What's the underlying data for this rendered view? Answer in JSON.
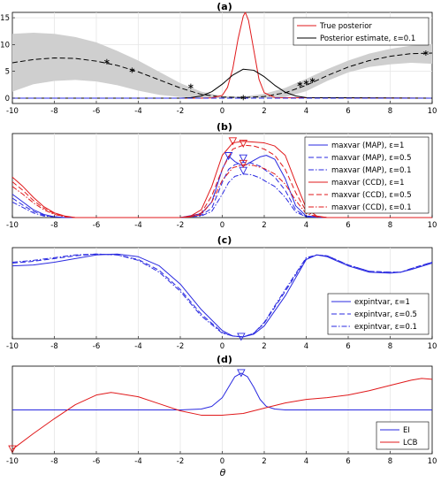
{
  "chart_data": [
    {
      "panel": "a",
      "title": "(a)",
      "type": "line",
      "xlim": [
        -10,
        10
      ],
      "ylim": [
        -1,
        16
      ],
      "xticks": [
        -10,
        -8,
        -6,
        -4,
        -2,
        0,
        2,
        4,
        6,
        8,
        10
      ],
      "yticks": [
        0,
        5,
        10,
        15
      ],
      "grid": true,
      "legend": "top-right",
      "legend_entries": [
        "True posterior",
        "Posterior estimate, ε=0.1"
      ],
      "band": {
        "x": [
          -10,
          -9,
          -8,
          -7,
          -6,
          -5,
          -4,
          -3,
          -2,
          -1,
          0,
          1,
          2,
          3,
          4,
          5,
          6,
          7,
          8,
          9,
          10
        ],
        "lower": [
          1.2,
          2.6,
          3.2,
          3.4,
          3.1,
          2.4,
          1.4,
          0.6,
          0.2,
          0.1,
          0.0,
          0.0,
          0.0,
          0.2,
          1.3,
          3.2,
          4.8,
          5.8,
          6.3,
          6.6,
          6.4
        ],
        "upper": [
          12.0,
          12.2,
          12.0,
          11.4,
          10.4,
          8.8,
          7.0,
          4.9,
          2.8,
          1.2,
          0.4,
          0.3,
          0.8,
          1.9,
          3.6,
          5.4,
          7.0,
          8.3,
          9.2,
          9.8,
          10.1
        ]
      },
      "series": [
        {
          "style": "dashed-black",
          "x": [
            -10,
            -9,
            -8,
            -7,
            -6,
            -5,
            -4,
            -3,
            -2,
            -1,
            0,
            1,
            2,
            3,
            4,
            5,
            6,
            7,
            8,
            9,
            10
          ],
          "y": [
            6.6,
            7.2,
            7.5,
            7.4,
            6.9,
            6.1,
            4.9,
            3.4,
            1.9,
            0.7,
            0.2,
            0.1,
            0.3,
            1.0,
            2.4,
            4.2,
            5.8,
            7.0,
            7.8,
            8.3,
            8.4
          ]
        },
        {
          "style": "solid-red",
          "x": [
            -10,
            -1,
            -0.5,
            0,
            0.25,
            0.5,
            0.75,
            1,
            1.1,
            1.25,
            1.5,
            1.75,
            2,
            2.5,
            10
          ],
          "y": [
            0,
            0,
            0.05,
            0.5,
            2,
            5.5,
            11,
            15.3,
            16,
            14.5,
            9,
            3.5,
            1,
            0.1,
            0
          ]
        },
        {
          "style": "solid-black",
          "x": [
            -10,
            -2,
            -1.5,
            -1,
            -0.5,
            0,
            0.5,
            1,
            1.5,
            2,
            2.5,
            3,
            3.5,
            4,
            10
          ],
          "y": [
            0,
            0,
            0.1,
            0.4,
            1.2,
            2.6,
            4.3,
            5.4,
            5.2,
            4.0,
            2.4,
            1.1,
            0.4,
            0.1,
            0
          ]
        },
        {
          "style": "dashed-blue",
          "x": [
            -10,
            10
          ],
          "y": [
            0,
            0
          ]
        }
      ],
      "points": {
        "x": [
          -5.5,
          -4.3,
          -1.5,
          1.0,
          3.7,
          4.0,
          4.3,
          9.7
        ],
        "y": [
          6.8,
          5.2,
          2.2,
          0.1,
          2.6,
          2.9,
          3.3,
          8.4
        ]
      }
    },
    {
      "panel": "b",
      "title": "(b)",
      "type": "line",
      "xlim": [
        -10,
        10
      ],
      "ylim": [
        0,
        1.08
      ],
      "xticks": [
        -10,
        -8,
        -6,
        -4,
        -2,
        0,
        2,
        4,
        6,
        8,
        10
      ],
      "grid": true,
      "legend": "right",
      "legend_entries": [
        "maxvar (MAP), ε=1",
        "maxvar (MAP), ε=0.5",
        "maxvar (MAP), ε=0.1",
        "maxvar (CCD), ε=1",
        "maxvar (CCD), ε=0.5",
        "maxvar (CCD), ε=0.1"
      ],
      "series": [
        {
          "style": "solid-blue",
          "x": [
            -10,
            -9.5,
            -9,
            -8.5,
            -8,
            -7.5,
            -7,
            -5,
            -2,
            -1,
            -0.5,
            0,
            0.3,
            0.6,
            1,
            1.4,
            1.8,
            2.1,
            2.5,
            3,
            3.5,
            4,
            5,
            10
          ],
          "y": [
            0.3,
            0.2,
            0.1,
            0.04,
            0.01,
            0,
            0,
            0,
            0,
            0.05,
            0.2,
            0.62,
            0.79,
            0.72,
            0.66,
            0.72,
            0.78,
            0.8,
            0.75,
            0.5,
            0.15,
            0.02,
            0,
            0
          ],
          "marker": {
            "x": 0.3,
            "y": 0.79
          }
        },
        {
          "style": "dashed-blue",
          "x": [
            -10,
            -9.5,
            -9,
            -8.5,
            -8,
            -7.5,
            -7,
            -5,
            -2,
            -1,
            -0.5,
            0,
            0.3,
            0.6,
            1,
            1.4,
            1.8,
            2.1,
            2.5,
            3,
            3.5,
            4,
            5,
            10
          ],
          "y": [
            0.25,
            0.16,
            0.08,
            0.03,
            0.01,
            0,
            0,
            0,
            0,
            0.03,
            0.12,
            0.45,
            0.62,
            0.68,
            0.71,
            0.7,
            0.66,
            0.6,
            0.52,
            0.35,
            0.1,
            0.01,
            0,
            0
          ],
          "marker": {
            "x": 1.0,
            "y": 0.76
          }
        },
        {
          "style": "dashdot-blue",
          "x": [
            -10,
            -9.5,
            -9,
            -8.5,
            -8,
            -7.5,
            -7,
            -5,
            -2,
            -1,
            -0.5,
            0,
            0.3,
            0.6,
            1,
            1.4,
            1.8,
            2.1,
            2.5,
            3,
            3.5,
            4,
            5,
            10
          ],
          "y": [
            0.2,
            0.13,
            0.06,
            0.02,
            0.01,
            0,
            0,
            0,
            0,
            0.02,
            0.08,
            0.3,
            0.45,
            0.53,
            0.56,
            0.55,
            0.51,
            0.46,
            0.4,
            0.26,
            0.07,
            0.01,
            0,
            0
          ],
          "marker": {
            "x": 1.0,
            "y": 0.6
          }
        },
        {
          "style": "solid-red",
          "x": [
            -10,
            -9.5,
            -9,
            -8.5,
            -8,
            -7.5,
            -7,
            -5,
            -2,
            -1.5,
            -1,
            -0.5,
            0,
            0.5,
            1,
            1.5,
            2,
            2.5,
            3,
            3.5,
            4,
            4.5,
            5,
            10
          ],
          "y": [
            0.52,
            0.4,
            0.26,
            0.14,
            0.06,
            0.02,
            0,
            0,
            0,
            0.02,
            0.1,
            0.4,
            0.8,
            0.96,
            0.98,
            0.97,
            0.96,
            0.92,
            0.8,
            0.45,
            0.12,
            0.02,
            0,
            0
          ],
          "marker": {
            "x": 0.5,
            "y": 0.98
          }
        },
        {
          "style": "dashed-red",
          "x": [
            -10,
            -9.5,
            -9,
            -8.5,
            -8,
            -7.5,
            -7,
            -5,
            -2,
            -1.5,
            -1,
            -0.5,
            0,
            0.5,
            1,
            1.5,
            2,
            2.5,
            3,
            3.5,
            4,
            4.5,
            5,
            10
          ],
          "y": [
            0.46,
            0.35,
            0.22,
            0.12,
            0.05,
            0.01,
            0,
            0,
            0,
            0.01,
            0.06,
            0.28,
            0.62,
            0.88,
            0.93,
            0.92,
            0.88,
            0.8,
            0.62,
            0.32,
            0.08,
            0.01,
            0,
            0
          ],
          "marker": {
            "x": 1.0,
            "y": 0.95
          }
        },
        {
          "style": "dashdot-red",
          "x": [
            -10,
            -9.5,
            -9,
            -8.5,
            -8,
            -7.5,
            -7,
            -5,
            -2,
            -1.5,
            -1,
            -0.5,
            0,
            0.5,
            1,
            1.5,
            2,
            2.5,
            3,
            3.5,
            4,
            4.5,
            5,
            10
          ],
          "y": [
            0.4,
            0.3,
            0.19,
            0.1,
            0.04,
            0.01,
            0,
            0,
            0,
            0.01,
            0.04,
            0.2,
            0.48,
            0.64,
            0.68,
            0.67,
            0.63,
            0.56,
            0.43,
            0.22,
            0.05,
            0.01,
            0,
            0
          ],
          "marker": {
            "x": 1.0,
            "y": 0.69
          }
        }
      ]
    },
    {
      "panel": "c",
      "title": "(c)",
      "type": "line",
      "xlim": [
        -10,
        10
      ],
      "ylim": [
        0,
        1.0
      ],
      "xticks": [
        -10,
        -8,
        -6,
        -4,
        -2,
        0,
        2,
        4,
        6,
        8,
        10
      ],
      "grid": true,
      "legend": "bottom-right",
      "legend_entries": [
        "expintvar, ε=1",
        "expintvar, ε=0.5",
        "expintvar, ε=0.1"
      ],
      "series": [
        {
          "style": "solid-blue",
          "x": [
            -10,
            -9,
            -8,
            -7,
            -6,
            -5,
            -4,
            -3,
            -2,
            -1,
            0,
            0.5,
            1,
            1.5,
            2,
            3,
            4,
            4.5,
            5,
            6,
            7,
            8,
            8.5,
            9,
            10
          ],
          "y": [
            0.8,
            0.81,
            0.84,
            0.88,
            0.92,
            0.93,
            0.9,
            0.8,
            0.6,
            0.32,
            0.09,
            0.03,
            0.02,
            0.05,
            0.14,
            0.47,
            0.87,
            0.92,
            0.9,
            0.8,
            0.73,
            0.72,
            0.73,
            0.76,
            0.83
          ]
        },
        {
          "style": "dashed-blue",
          "x": [
            -10,
            -9,
            -8,
            -7,
            -6,
            -5,
            -4,
            -3,
            -2,
            -1,
            0,
            0.5,
            1,
            1.5,
            2,
            3,
            4,
            4.5,
            5,
            6,
            7,
            8,
            8.5,
            9,
            10
          ],
          "y": [
            0.83,
            0.85,
            0.88,
            0.91,
            0.93,
            0.92,
            0.87,
            0.75,
            0.54,
            0.27,
            0.07,
            0.03,
            0.02,
            0.06,
            0.17,
            0.52,
            0.88,
            0.92,
            0.91,
            0.81,
            0.74,
            0.73,
            0.73,
            0.77,
            0.84
          ]
        },
        {
          "style": "dashdot-blue",
          "x": [
            -10,
            -9,
            -8,
            -7,
            -6,
            -5,
            -4,
            -3,
            -2,
            -1,
            0,
            0.5,
            1,
            1.5,
            2,
            3,
            4,
            4.5,
            5,
            6,
            7,
            8,
            8.5,
            9,
            10
          ],
          "y": [
            0.84,
            0.86,
            0.89,
            0.92,
            0.93,
            0.92,
            0.86,
            0.73,
            0.52,
            0.25,
            0.06,
            0.03,
            0.02,
            0.06,
            0.18,
            0.54,
            0.89,
            0.92,
            0.91,
            0.81,
            0.74,
            0.73,
            0.73,
            0.77,
            0.84
          ]
        }
      ],
      "markers": [
        {
          "x": 0.9,
          "y": 0.02,
          "color": "blue"
        }
      ]
    },
    {
      "panel": "d",
      "title": "(d)",
      "type": "line",
      "xlabel": "θ",
      "xlim": [
        -10,
        10
      ],
      "ylim": [
        0,
        1.0
      ],
      "xticks": [
        -10,
        -8,
        -6,
        -4,
        -2,
        0,
        2,
        4,
        6,
        8,
        10
      ],
      "grid": true,
      "legend": "bottom-right",
      "legend_entries": [
        "EI",
        "LCB"
      ],
      "series": [
        {
          "style": "solid-blue",
          "x": [
            -10,
            -2,
            -1,
            -0.5,
            0,
            0.3,
            0.6,
            0.9,
            1.2,
            1.5,
            1.8,
            2.1,
            2.5,
            3,
            10
          ],
          "y": [
            0.5,
            0.5,
            0.51,
            0.54,
            0.64,
            0.76,
            0.88,
            0.92,
            0.88,
            0.76,
            0.62,
            0.54,
            0.51,
            0.5,
            0.5
          ]
        },
        {
          "style": "solid-red",
          "x": [
            -10,
            -9,
            -8,
            -7,
            -6,
            -5.3,
            -4,
            -3,
            -2,
            -1,
            0,
            1,
            2,
            3,
            4,
            5,
            6,
            7,
            8,
            9,
            9.5,
            10
          ],
          "y": [
            0.05,
            0.23,
            0.4,
            0.56,
            0.67,
            0.7,
            0.65,
            0.57,
            0.49,
            0.44,
            0.44,
            0.46,
            0.52,
            0.58,
            0.62,
            0.64,
            0.67,
            0.72,
            0.78,
            0.84,
            0.86,
            0.85
          ]
        }
      ],
      "markers": [
        {
          "x": 0.9,
          "y": 0.92,
          "color": "blue"
        },
        {
          "x": -10,
          "y": 0.05,
          "color": "red"
        }
      ]
    }
  ]
}
